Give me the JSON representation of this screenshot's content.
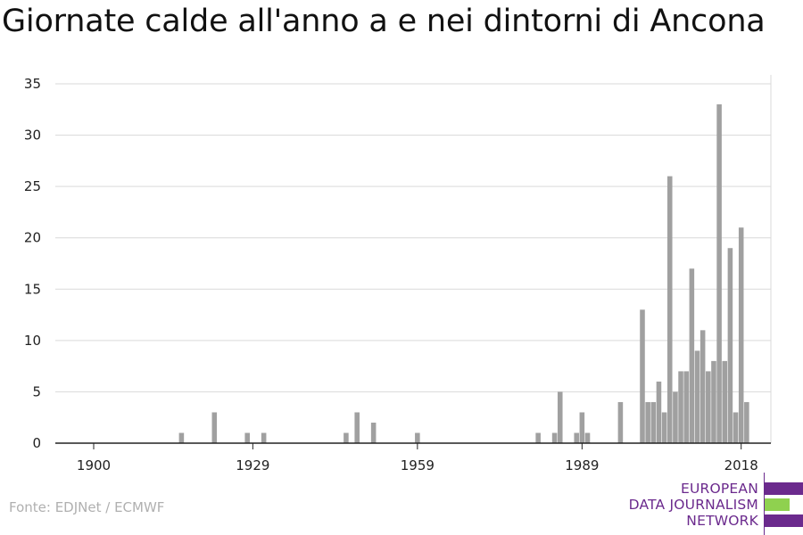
{
  "title": "Giornate calde all'anno a e nei dintorni di Ancona",
  "source": "Fonte: EDJNet / ECMWF",
  "logo": {
    "lines": [
      "EUROPEAN",
      "DATA JOURNALISM",
      "NETWORK"
    ],
    "colors": {
      "purple": "#6b2a8d",
      "green": "#8fd14f"
    }
  },
  "colors": {
    "bar": "#a0a0a0",
    "grid": "#d9d9d9",
    "axis": "#222222"
  },
  "chart_data": {
    "type": "bar",
    "title": "Giornate calde all'anno a e nei dintorni di Ancona",
    "xlabel": "",
    "ylabel": "",
    "xlim": [
      1900,
      2019
    ],
    "ylim": [
      0,
      35
    ],
    "x_ticks": [
      1900,
      1929,
      1959,
      1989,
      2018
    ],
    "y_ticks": [
      0,
      5,
      10,
      15,
      20,
      25,
      30,
      35
    ],
    "grid": true,
    "categories": [
      1916,
      1922,
      1928,
      1931,
      1946,
      1948,
      1951,
      1959,
      1981,
      1984,
      1985,
      1988,
      1989,
      1990,
      1996,
      2000,
      2001,
      2002,
      2003,
      2004,
      2005,
      2006,
      2007,
      2008,
      2009,
      2010,
      2011,
      2012,
      2013,
      2014,
      2015,
      2016,
      2017,
      2018,
      2019
    ],
    "values": [
      1,
      3,
      1,
      1,
      1,
      3,
      2,
      1,
      1,
      1,
      5,
      1,
      3,
      1,
      4,
      13,
      4,
      4,
      6,
      3,
      26,
      5,
      7,
      7,
      17,
      9,
      11,
      7,
      8,
      33,
      8,
      19,
      3,
      21,
      4
    ]
  }
}
